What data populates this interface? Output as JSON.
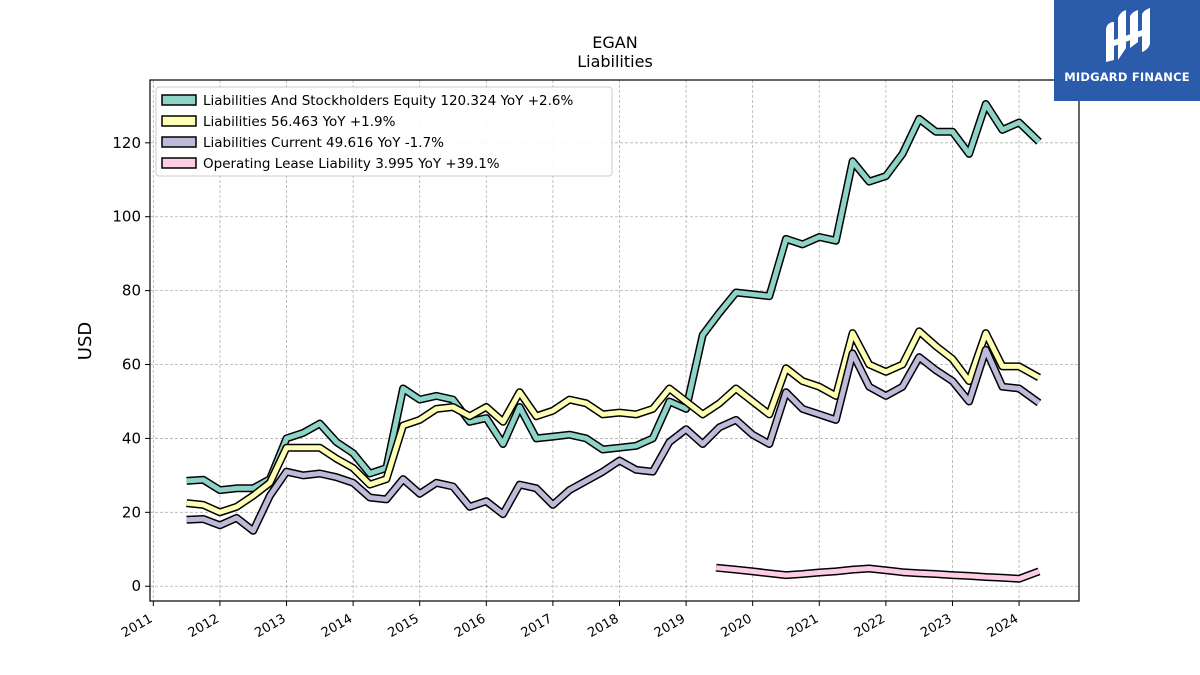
{
  "header": {
    "ticker": "EGAN",
    "subtitle": "Liabilities"
  },
  "brand": {
    "name": "MIDGARD FINANCE",
    "color": "#2b5bab"
  },
  "chart_data": {
    "type": "line",
    "title": "EGAN",
    "subtitle": "Liabilities",
    "xlabel": "",
    "ylabel": "USD",
    "xlim": [
      2010.95,
      2024.9
    ],
    "ylim": [
      -4,
      137
    ],
    "yticks": [
      0,
      20,
      40,
      60,
      80,
      100,
      120
    ],
    "xticks": [
      "2011",
      "2012",
      "2013",
      "2014",
      "2015",
      "2016",
      "2017",
      "2018",
      "2019",
      "2020",
      "2021",
      "2022",
      "2023",
      "2024"
    ],
    "grid": true,
    "legend_position": "top-left",
    "series": [
      {
        "name": "Liabilities And Stockholders Equity",
        "legend": "Liabilities And Stockholders Equity  120.324 YoY +2.6%",
        "color": "#8dd3c7",
        "x": [
          2011.5,
          2011.75,
          2012.0,
          2012.25,
          2012.5,
          2012.75,
          2013.0,
          2013.25,
          2013.5,
          2013.75,
          2014.0,
          2014.25,
          2014.5,
          2014.75,
          2015.0,
          2015.25,
          2015.5,
          2015.75,
          2016.0,
          2016.25,
          2016.5,
          2016.75,
          2017.0,
          2017.25,
          2017.5,
          2017.75,
          2018.0,
          2018.25,
          2018.5,
          2018.75,
          2019.0,
          2019.25,
          2019.5,
          2019.75,
          2020.0,
          2020.25,
          2020.5,
          2020.75,
          2021.0,
          2021.25,
          2021.5,
          2021.75,
          2022.0,
          2022.25,
          2022.5,
          2022.75,
          2023.0,
          2023.25,
          2023.5,
          2023.75,
          2024.0,
          2024.3
        ],
        "values": [
          28.5,
          28.8,
          26.0,
          26.5,
          26.5,
          29.0,
          40.0,
          41.5,
          44.0,
          39.0,
          36.0,
          30.5,
          32.0,
          53.5,
          50.5,
          51.5,
          50.5,
          44.5,
          45.5,
          38.5,
          48.5,
          40.0,
          40.5,
          41.0,
          40.0,
          37.0,
          37.5,
          38.0,
          40.0,
          50.0,
          48.0,
          68.0,
          74.0,
          79.5,
          79.0,
          78.5,
          94.0,
          92.5,
          94.5,
          93.5,
          115.0,
          109.5,
          111.0,
          117.0,
          126.5,
          123.0,
          123.0,
          117.0,
          130.5,
          123.5,
          125.5,
          120.3
        ]
      },
      {
        "name": "Liabilities",
        "legend": "Liabilities  56.463 YoY +1.9%",
        "color": "#ffffb3",
        "x": [
          2011.5,
          2011.75,
          2012.0,
          2012.25,
          2012.5,
          2012.75,
          2013.0,
          2013.25,
          2013.5,
          2013.75,
          2014.0,
          2014.25,
          2014.5,
          2014.75,
          2015.0,
          2015.25,
          2015.5,
          2015.75,
          2016.0,
          2016.25,
          2016.5,
          2016.75,
          2017.0,
          2017.25,
          2017.5,
          2017.75,
          2018.0,
          2018.25,
          2018.5,
          2018.75,
          2019.0,
          2019.25,
          2019.5,
          2019.75,
          2020.0,
          2020.25,
          2020.5,
          2020.75,
          2021.0,
          2021.25,
          2021.5,
          2021.75,
          2022.0,
          2022.25,
          2022.5,
          2022.75,
          2023.0,
          2023.25,
          2023.5,
          2023.75,
          2024.0,
          2024.3
        ],
        "values": [
          22.5,
          22.0,
          20.0,
          21.5,
          24.5,
          28.0,
          37.5,
          37.5,
          37.5,
          34.5,
          32.0,
          27.5,
          29.0,
          43.5,
          45.0,
          48.0,
          48.5,
          46.0,
          48.5,
          44.5,
          52.5,
          46.0,
          47.5,
          50.5,
          49.5,
          46.5,
          47.0,
          46.5,
          48.0,
          53.5,
          50.0,
          46.5,
          49.5,
          53.5,
          50.0,
          46.5,
          59.0,
          55.5,
          54.0,
          51.5,
          68.5,
          60.0,
          58.0,
          60.0,
          69.0,
          65.0,
          61.5,
          55.5,
          68.5,
          59.5,
          59.5,
          56.5
        ]
      },
      {
        "name": "Liabilities Current",
        "legend": "Liabilities Current  49.616 YoY -1.7%",
        "color": "#bebada",
        "x": [
          2011.5,
          2011.75,
          2012.0,
          2012.25,
          2012.5,
          2012.75,
          2013.0,
          2013.25,
          2013.5,
          2013.75,
          2014.0,
          2014.25,
          2014.5,
          2014.75,
          2015.0,
          2015.25,
          2015.5,
          2015.75,
          2016.0,
          2016.25,
          2016.5,
          2016.75,
          2017.0,
          2017.25,
          2017.5,
          2017.75,
          2018.0,
          2018.25,
          2018.5,
          2018.75,
          2019.0,
          2019.25,
          2019.5,
          2019.75,
          2020.0,
          2020.25,
          2020.5,
          2020.75,
          2021.0,
          2021.25,
          2021.5,
          2021.75,
          2022.0,
          2022.25,
          2022.5,
          2022.75,
          2023.0,
          2023.25,
          2023.5,
          2023.75,
          2024.0,
          2024.3
        ],
        "values": [
          18.0,
          18.2,
          16.5,
          18.5,
          15.0,
          24.5,
          31.0,
          30.0,
          30.5,
          29.5,
          28.0,
          24.0,
          23.5,
          29.0,
          25.0,
          28.0,
          27.0,
          21.5,
          23.0,
          19.5,
          27.5,
          26.5,
          22.0,
          26.0,
          28.5,
          31.0,
          34.0,
          31.5,
          31.0,
          39.0,
          42.5,
          38.5,
          43.0,
          45.0,
          41.0,
          38.5,
          52.5,
          48.0,
          46.5,
          45.0,
          63.0,
          54.0,
          51.5,
          54.0,
          62.0,
          58.5,
          55.5,
          50.0,
          64.0,
          54.0,
          53.5,
          49.6
        ]
      },
      {
        "name": "Operating Lease Liability",
        "legend": "Operating Lease Liability  3.995 YoY +39.1%",
        "color": "#fccde5",
        "x": [
          2019.45,
          2019.75,
          2020.0,
          2020.25,
          2020.5,
          2020.75,
          2021.0,
          2021.25,
          2021.5,
          2021.75,
          2022.0,
          2022.25,
          2022.5,
          2022.75,
          2023.0,
          2023.25,
          2023.5,
          2023.75,
          2024.0,
          2024.3
        ],
        "values": [
          5.0,
          4.5,
          4.0,
          3.5,
          3.0,
          3.3,
          3.7,
          4.0,
          4.5,
          4.8,
          4.3,
          3.8,
          3.5,
          3.3,
          3.0,
          2.8,
          2.5,
          2.3,
          2.0,
          4.0
        ]
      }
    ]
  }
}
